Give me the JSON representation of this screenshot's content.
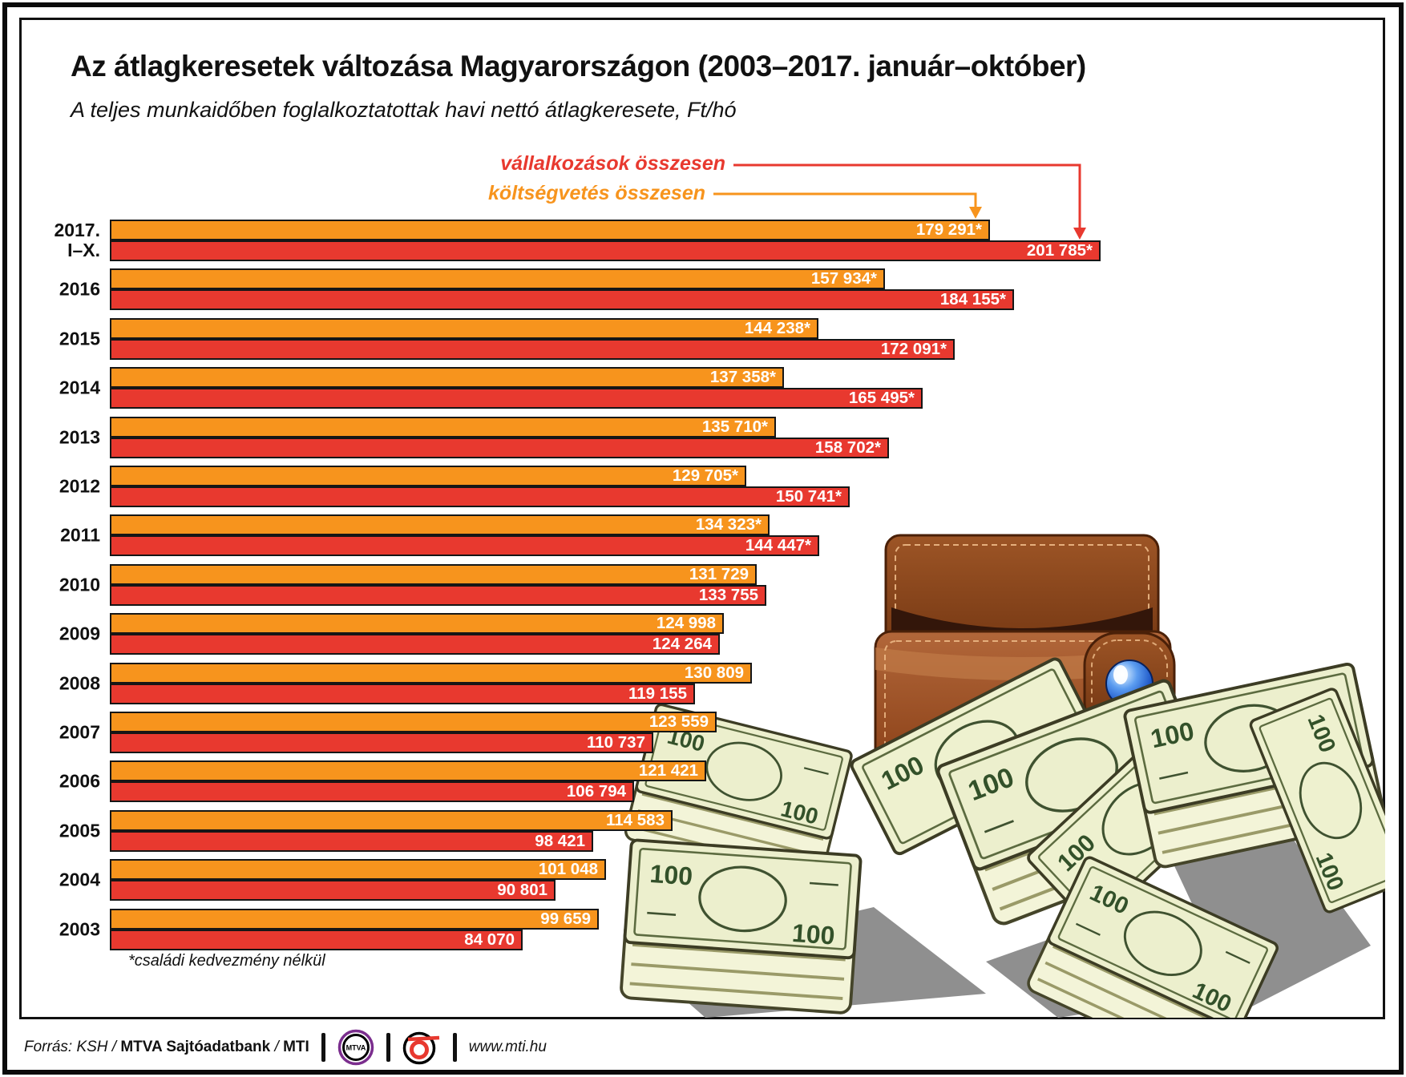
{
  "title": "Az átlagkeresetek változása Magyarországon (2003–2017. január–október)",
  "subtitle": "A teljes munkaidőben foglalkoztatottak havi nettó átlagkeresete, Ft/hó",
  "legend": {
    "vallalkozasok_label": "vállalkozások összesen",
    "koltsegvetes_label": "költségvetés összesen"
  },
  "colors": {
    "orange": "#f7941d",
    "red": "#e8392f",
    "bar_border": "#161616"
  },
  "footnote": "*családi kedvezmény nélkül",
  "footer": {
    "source_italic": "Forrás: KSH / ",
    "source_bold": "MTVA Sajtóadatbank",
    "source_mid": " / ",
    "source_bold2": "MTI",
    "mtva_logo_text": "MTVA",
    "website": "www.mti.hu"
  },
  "illustration": {
    "denomination": "100"
  },
  "chart_data": {
    "type": "bar",
    "orientation": "horizontal",
    "unit": "Ft/hó",
    "max_value": 201785,
    "value_axis_hidden": true,
    "series": [
      {
        "name": "költségvetés összesen",
        "color": "#f7941d",
        "position": "top"
      },
      {
        "name": "vállalkozások összesen",
        "color": "#e8392f",
        "position": "bottom"
      }
    ],
    "rows": [
      {
        "year_lines": [
          "2017.",
          "I–X."
        ],
        "koltsegvetes": 179291,
        "koltsegvetes_label": "179 291*",
        "vallalkozasok": 201785,
        "vallalkozasok_label": "201 785*"
      },
      {
        "year_lines": [
          "2016"
        ],
        "koltsegvetes": 157934,
        "koltsegvetes_label": "157 934*",
        "vallalkozasok": 184155,
        "vallalkozasok_label": "184 155*"
      },
      {
        "year_lines": [
          "2015"
        ],
        "koltsegvetes": 144238,
        "koltsegvetes_label": "144 238*",
        "vallalkozasok": 172091,
        "vallalkozasok_label": "172 091*"
      },
      {
        "year_lines": [
          "2014"
        ],
        "koltsegvetes": 137358,
        "koltsegvetes_label": "137 358*",
        "vallalkozasok": 165495,
        "vallalkozasok_label": "165 495*"
      },
      {
        "year_lines": [
          "2013"
        ],
        "koltsegvetes": 135710,
        "koltsegvetes_label": "135 710*",
        "vallalkozasok": 158702,
        "vallalkozasok_label": "158 702*"
      },
      {
        "year_lines": [
          "2012"
        ],
        "koltsegvetes": 129705,
        "koltsegvetes_label": "129 705*",
        "vallalkozasok": 150741,
        "vallalkozasok_label": "150 741*"
      },
      {
        "year_lines": [
          "2011"
        ],
        "koltsegvetes": 134323,
        "koltsegvetes_label": "134 323*",
        "vallalkozasok": 144447,
        "vallalkozasok_label": "144 447*"
      },
      {
        "year_lines": [
          "2010"
        ],
        "koltsegvetes": 131729,
        "koltsegvetes_label": "131 729",
        "vallalkozasok": 133755,
        "vallalkozasok_label": "133 755"
      },
      {
        "year_lines": [
          "2009"
        ],
        "koltsegvetes": 124998,
        "koltsegvetes_label": "124 998",
        "vallalkozasok": 124264,
        "vallalkozasok_label": "124 264"
      },
      {
        "year_lines": [
          "2008"
        ],
        "koltsegvetes": 130809,
        "koltsegvetes_label": "130 809",
        "vallalkozasok": 119155,
        "vallalkozasok_label": "119 155"
      },
      {
        "year_lines": [
          "2007"
        ],
        "koltsegvetes": 123559,
        "koltsegvetes_label": "123 559",
        "vallalkozasok": 110737,
        "vallalkozasok_label": "110 737"
      },
      {
        "year_lines": [
          "2006"
        ],
        "koltsegvetes": 121421,
        "koltsegvetes_label": "121 421",
        "vallalkozasok": 106794,
        "vallalkozasok_label": "106 794"
      },
      {
        "year_lines": [
          "2005"
        ],
        "koltsegvetes": 114583,
        "koltsegvetes_label": "114 583",
        "vallalkozasok": 98421,
        "vallalkozasok_label": "98 421"
      },
      {
        "year_lines": [
          "2004"
        ],
        "koltsegvetes": 101048,
        "koltsegvetes_label": "101 048",
        "vallalkozasok": 90801,
        "vallalkozasok_label": "90 801"
      },
      {
        "year_lines": [
          "2003"
        ],
        "koltsegvetes": 99659,
        "koltsegvetes_label": "99 659",
        "vallalkozasok": 84070,
        "vallalkozasok_label": "84 070"
      }
    ]
  }
}
